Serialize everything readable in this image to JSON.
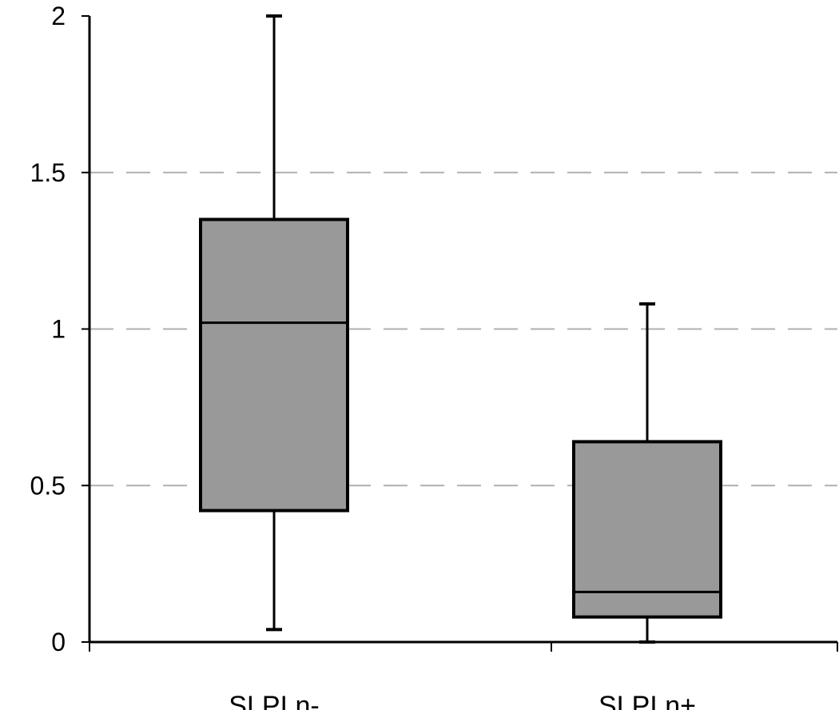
{
  "chart_data": {
    "type": "box",
    "title": "",
    "xlabel": "",
    "ylabel": "",
    "ylim": [
      0,
      2
    ],
    "yticks": [
      {
        "value": 0,
        "label": "0"
      },
      {
        "value": 0.5,
        "label": "0.5"
      },
      {
        "value": 1,
        "label": "1"
      },
      {
        "value": 1.5,
        "label": "1.5"
      },
      {
        "value": 2,
        "label": "2"
      }
    ],
    "grid": "dashed horizontal",
    "box_color": "#999999",
    "categories": [
      "SLPI n-",
      "SLPI n+"
    ],
    "boxes": [
      {
        "category": "SLPI n-",
        "min": 0.04,
        "q1": 0.42,
        "median": 1.02,
        "q3": 1.35,
        "max": 2.0
      },
      {
        "category": "SLPI n+",
        "min": 0.0,
        "q1": 0.08,
        "median": 0.16,
        "q3": 0.64,
        "max": 1.08
      }
    ]
  }
}
